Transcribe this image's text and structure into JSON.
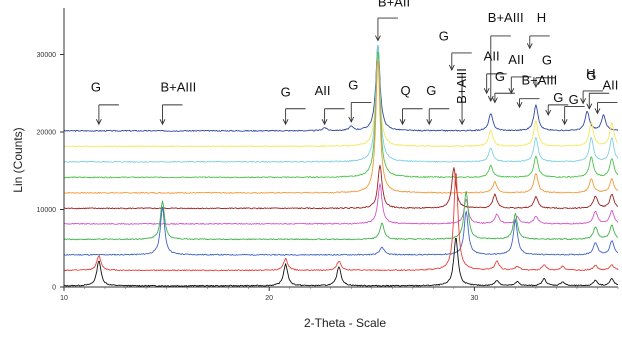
{
  "chart_data": {
    "type": "line",
    "title": "",
    "xlabel": "2-Theta - Scale",
    "ylabel": "Lin (Counts)",
    "xlim": [
      10,
      37
    ],
    "ylim": [
      0,
      36000
    ],
    "x_ticks": [
      10,
      20,
      30
    ],
    "y_ticks": [
      0,
      10000,
      20000,
      30000
    ],
    "grid": false,
    "legend": "none",
    "offset_step": 2000,
    "series": [
      {
        "offset": 0,
        "color": "#111111",
        "peaks": [
          [
            11.7,
            3300
          ],
          [
            20.8,
            2800
          ],
          [
            23.4,
            2500
          ],
          [
            29.1,
            6300
          ],
          [
            31.1,
            700
          ],
          [
            32.1,
            500
          ],
          [
            33.4,
            900
          ],
          [
            34.3,
            500
          ],
          [
            35.9,
            700
          ],
          [
            36.7,
            900
          ]
        ]
      },
      {
        "offset": 2000,
        "color": "#e8413c",
        "peaks": [
          [
            11.7,
            1900
          ],
          [
            20.8,
            1500
          ],
          [
            23.4,
            1200
          ],
          [
            29.1,
            12800
          ],
          [
            31.1,
            1200
          ],
          [
            32.1,
            500
          ],
          [
            33.4,
            700
          ],
          [
            34.3,
            500
          ],
          [
            35.9,
            600
          ],
          [
            36.7,
            700
          ]
        ]
      },
      {
        "offset": 4000,
        "color": "#3f63c7",
        "peaks": [
          [
            14.8,
            6200
          ],
          [
            25.5,
            1000
          ],
          [
            29.6,
            5600
          ],
          [
            32.0,
            4500
          ],
          [
            35.9,
            1600
          ],
          [
            36.7,
            1800
          ]
        ]
      },
      {
        "offset": 6000,
        "color": "#3fb34a",
        "peaks": [
          [
            14.8,
            4900
          ],
          [
            25.5,
            2100
          ],
          [
            29.6,
            6200
          ],
          [
            32.0,
            3300
          ],
          [
            35.9,
            1600
          ],
          [
            36.7,
            1800
          ]
        ]
      },
      {
        "offset": 8000,
        "color": "#d156c8",
        "peaks": [
          [
            25.4,
            5200
          ],
          [
            29.6,
            3200
          ],
          [
            31.1,
            1200
          ],
          [
            32.1,
            900
          ],
          [
            33.0,
            1000
          ],
          [
            35.9,
            1600
          ],
          [
            36.7,
            1700
          ]
        ]
      },
      {
        "offset": 10000,
        "color": "#9b2020",
        "peaks": [
          [
            25.4,
            5600
          ],
          [
            29.0,
            5300
          ],
          [
            31.0,
            1800
          ],
          [
            33.0,
            1500
          ],
          [
            35.9,
            1600
          ],
          [
            36.7,
            1800
          ]
        ]
      },
      {
        "offset": 12000,
        "color": "#f39a3a",
        "peaks": [
          [
            25.3,
            17400
          ],
          [
            31.0,
            1400
          ],
          [
            33.0,
            2500
          ],
          [
            35.7,
            1800
          ],
          [
            36.7,
            1800
          ]
        ]
      },
      {
        "offset": 14000,
        "color": "#4cc24c",
        "peaks": [
          [
            25.3,
            16600
          ],
          [
            30.8,
            1500
          ],
          [
            33.0,
            2800
          ],
          [
            35.7,
            2600
          ],
          [
            36.7,
            2400
          ]
        ]
      },
      {
        "offset": 16000,
        "color": "#7fcfe6",
        "peaks": [
          [
            25.3,
            15400
          ],
          [
            30.8,
            1800
          ],
          [
            33.0,
            3100
          ],
          [
            35.7,
            3100
          ],
          [
            36.7,
            3100
          ]
        ]
      },
      {
        "offset": 18000,
        "color": "#f2e85a",
        "peaks": [
          [
            25.3,
            12600
          ],
          [
            30.8,
            2100
          ],
          [
            33.0,
            3300
          ],
          [
            35.7,
            3100
          ],
          [
            36.7,
            3000
          ]
        ]
      },
      {
        "offset": 20000,
        "color": "#2f49a3",
        "peaks": [
          [
            22.7,
            400
          ],
          [
            24.0,
            500
          ],
          [
            25.3,
            11200
          ],
          [
            30.8,
            2200
          ],
          [
            33.0,
            3400
          ],
          [
            35.5,
            2500
          ],
          [
            36.3,
            2000
          ]
        ]
      }
    ],
    "annotations": [
      {
        "text": "G",
        "x": 11.7,
        "y": 21000,
        "line_y": 23500,
        "label_y": 25200,
        "label_dx": -8,
        "dir": 1
      },
      {
        "text": "B+AIII",
        "x": 14.8,
        "y": 21000,
        "line_y": 23500,
        "label_y": 25200,
        "label_dx": -2,
        "dir": 1
      },
      {
        "text": "G",
        "x": 20.8,
        "y": 21000,
        "line_y": 23000,
        "label_y": 24600,
        "label_dx": -5,
        "dir": 1
      },
      {
        "text": "AII",
        "x": 22.7,
        "y": 21000,
        "line_y": 23000,
        "label_y": 24800,
        "label_dx": -10,
        "dir": 1
      },
      {
        "text": "G",
        "x": 24.0,
        "y": 21300,
        "line_y": 23800,
        "label_y": 25500,
        "label_dx": -3,
        "dir": 1
      },
      {
        "text": "B+AII",
        "x": 25.3,
        "y": 31800,
        "line_y": 34700,
        "label_y": 36200,
        "label_dx": 0,
        "dir": 1
      },
      {
        "text": "Q",
        "x": 26.5,
        "y": 21000,
        "line_y": 23000,
        "label_y": 24800,
        "label_dx": -2,
        "dir": 1
      },
      {
        "text": "G",
        "x": 27.8,
        "y": 21000,
        "line_y": 23000,
        "label_y": 24800,
        "label_dx": -3,
        "dir": 1
      },
      {
        "text": "G",
        "x": 28.9,
        "y": 28000,
        "line_y": 30200,
        "label_y": 31800,
        "label_dx": -13,
        "dir": 1
      },
      {
        "text": "B+AIII",
        "x": 29.4,
        "y": 21000,
        "line_y": 27500,
        "label_y": 0,
        "label_dx": 0,
        "vertical": true
      },
      {
        "text": "B+AIII",
        "x": 30.8,
        "y": 24000,
        "line_y": 32400,
        "label_y": 34200,
        "label_dx": -3,
        "dir": 1
      },
      {
        "text": "H",
        "x": 32.7,
        "y": 30800,
        "line_y": 32400,
        "label_y": 34200,
        "label_dx": 7,
        "dir": 1
      },
      {
        "text": "AII",
        "x": 30.6,
        "y": 25000,
        "line_y": 27500,
        "label_y": 29200,
        "label_dx": -3,
        "dir": 1
      },
      {
        "text": "AII",
        "x": 31.8,
        "y": 25000,
        "line_y": 27100,
        "label_y": 28800,
        "label_dx": -3,
        "dir": 1
      },
      {
        "text": "G",
        "x": 33.0,
        "y": 25800,
        "line_y": 27000,
        "label_y": 28700,
        "label_dx": 6,
        "dir": 1
      },
      {
        "text": "G",
        "x": 31.0,
        "y": 23800,
        "line_y": 25000,
        "label_y": 26600,
        "label_dx": 0,
        "dir": 1
      },
      {
        "text": "B+AIII",
        "x": 32.2,
        "y": 23200,
        "line_y": 24300,
        "label_y": 26100,
        "label_dx": 2,
        "dir": 1
      },
      {
        "text": "G",
        "x": 33.6,
        "y": 22200,
        "line_y": 23500,
        "label_y": 23900,
        "label_dx": 5,
        "dir": 1
      },
      {
        "text": "G",
        "x": 34.4,
        "y": 21000,
        "line_y": 23300,
        "label_y": 23600,
        "label_dx": 4,
        "dir": 1
      },
      {
        "text": "H",
        "x": 35.3,
        "y": 23700,
        "line_y": 25300,
        "label_y": 27000,
        "label_dx": 3,
        "dir": 1
      },
      {
        "text": "G",
        "x": 35.6,
        "y": 23000,
        "line_y": 25000,
        "label_y": 26700,
        "label_dx": -3,
        "dir": 1
      },
      {
        "text": "AII",
        "x": 36.0,
        "y": 22400,
        "line_y": 23800,
        "label_y": 25500,
        "label_dx": 5,
        "dir": 1
      }
    ]
  }
}
